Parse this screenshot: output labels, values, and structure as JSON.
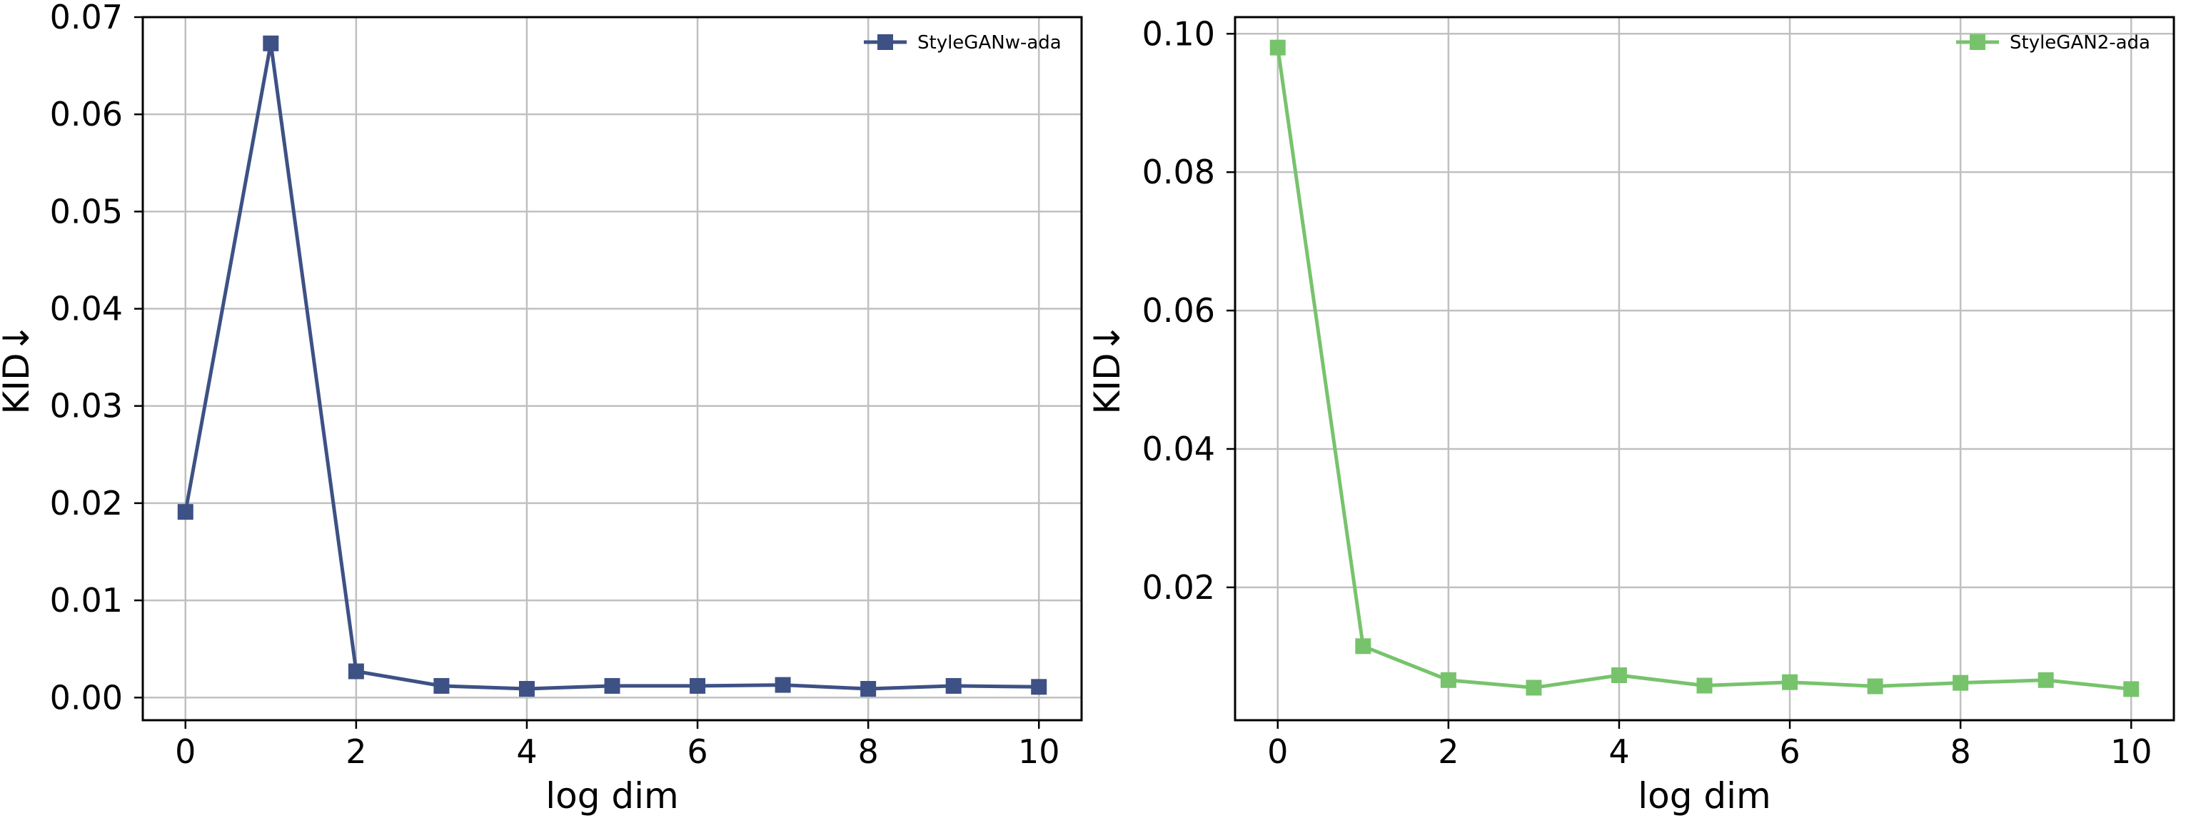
{
  "chart_data": [
    {
      "type": "line",
      "title": "",
      "xlabel": "log dim",
      "ylabel": "KID↓",
      "xlim": [
        -0.5,
        10.5
      ],
      "ylim": [
        -0.00233,
        0.07
      ],
      "xticks": [
        0,
        2,
        4,
        6,
        8,
        10
      ],
      "xtick_labels": [
        "0",
        "2",
        "4",
        "6",
        "8",
        "10"
      ],
      "yticks": [
        0.0,
        0.01,
        0.02,
        0.03,
        0.04,
        0.05,
        0.06,
        0.07
      ],
      "ytick_labels": [
        "0.00",
        "0.01",
        "0.02",
        "0.03",
        "0.04",
        "0.05",
        "0.06",
        "0.07"
      ],
      "grid": true,
      "legend_position": "top-right",
      "series": [
        {
          "name": "StyleGANw-ada",
          "color": "#3e5185",
          "marker": "square",
          "x": [
            0,
            1,
            2,
            3,
            4,
            5,
            6,
            7,
            8,
            9,
            10
          ],
          "y": [
            0.0191,
            0.0673,
            0.0027,
            0.0012,
            0.0009,
            0.0012,
            0.0012,
            0.0013,
            0.0009,
            0.0012,
            0.0011
          ]
        }
      ]
    },
    {
      "type": "line",
      "title": "",
      "xlabel": "log dim",
      "ylabel": "KID↓",
      "xlim": [
        -0.5,
        10.5
      ],
      "ylim": [
        0.0008,
        0.1024
      ],
      "xticks": [
        0,
        2,
        4,
        6,
        8,
        10
      ],
      "xtick_labels": [
        "0",
        "2",
        "4",
        "6",
        "8",
        "10"
      ],
      "yticks": [
        0.02,
        0.04,
        0.06,
        0.08,
        0.1
      ],
      "ytick_labels": [
        "0.02",
        "0.04",
        "0.06",
        "0.08",
        "0.10"
      ],
      "grid": true,
      "legend_position": "top-right",
      "series": [
        {
          "name": "StyleGAN2-ada",
          "color": "#77c36c",
          "marker": "square",
          "x": [
            0,
            1,
            2,
            3,
            4,
            5,
            6,
            7,
            8,
            9,
            10
          ],
          "y": [
            0.098,
            0.0115,
            0.0066,
            0.0055,
            0.0073,
            0.0058,
            0.0063,
            0.0057,
            0.0062,
            0.0066,
            0.0053
          ]
        }
      ]
    }
  ]
}
